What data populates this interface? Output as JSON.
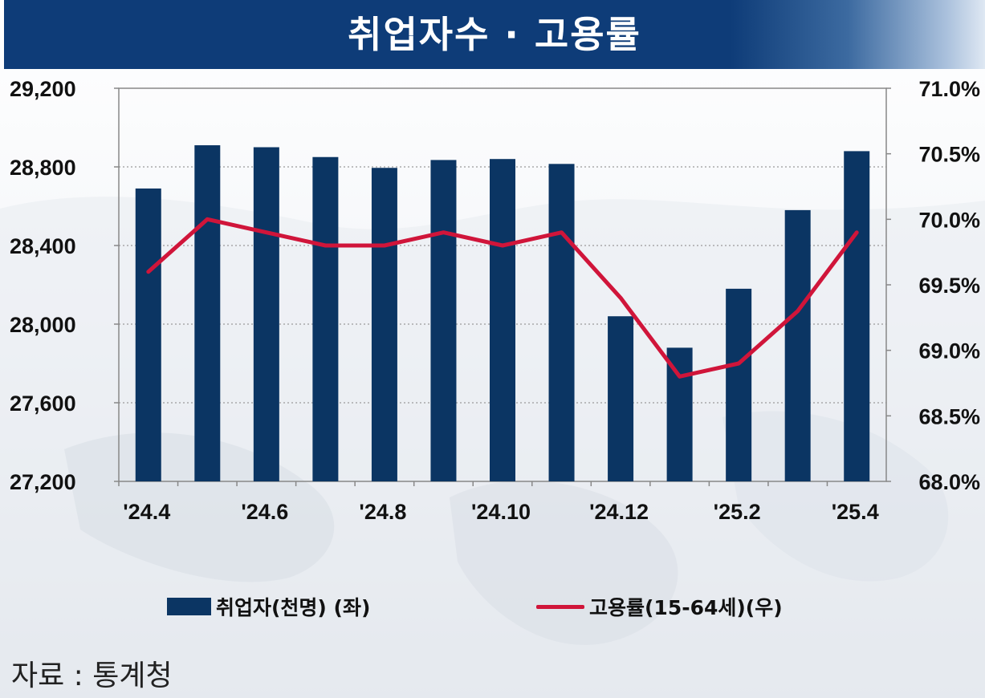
{
  "title": "취업자수 · 고용률",
  "legend": {
    "bar_label": "취업자(천명) (좌)",
    "line_label": "고용률(15-64세)(우)"
  },
  "source": "자료 : 통계청",
  "colors": {
    "bar": "#0b3563",
    "line": "#d0153a",
    "title_bg": "#0e3c78"
  },
  "chart_data": {
    "type": "bar+line",
    "categories": [
      "'24.4",
      "'24.5",
      "'24.6",
      "'24.7",
      "'24.8",
      "'24.9",
      "'24.10",
      "'24.11",
      "'24.12",
      "'25.1",
      "'25.2",
      "'25.3",
      "'25.4"
    ],
    "x_tick_labels": [
      "'24.4",
      "",
      "'24.6",
      "",
      "'24.8",
      "",
      "'24.10",
      "",
      "'24.12",
      "",
      "'25.2",
      "",
      "'25.4"
    ],
    "series": [
      {
        "name": "취업자(천명) (좌)",
        "type": "bar",
        "axis": "left",
        "values": [
          28690,
          28910,
          28900,
          28850,
          28795,
          28835,
          28840,
          28815,
          28040,
          27880,
          28180,
          28580,
          28880
        ]
      },
      {
        "name": "고용률(15-64세)(우)",
        "type": "line",
        "axis": "right",
        "values": [
          69.6,
          70.0,
          69.9,
          69.8,
          69.8,
          69.9,
          69.8,
          69.9,
          69.4,
          68.8,
          68.9,
          69.3,
          69.9
        ]
      }
    ],
    "y_left": {
      "min": 27200,
      "max": 29200,
      "ticks": [
        "27,200",
        "27,600",
        "28,000",
        "28,400",
        "28,800",
        "29,200"
      ],
      "tick_values": [
        27200,
        27600,
        28000,
        28400,
        28800,
        29200
      ]
    },
    "y_right": {
      "min": 68.0,
      "max": 71.0,
      "ticks": [
        "68.0%",
        "68.5%",
        "69.0%",
        "69.5%",
        "70.0%",
        "70.5%",
        "71.0%"
      ],
      "tick_values": [
        68.0,
        68.5,
        69.0,
        69.5,
        70.0,
        70.5,
        71.0
      ]
    },
    "grid": "horizontal dotted",
    "legend_position": "bottom"
  }
}
